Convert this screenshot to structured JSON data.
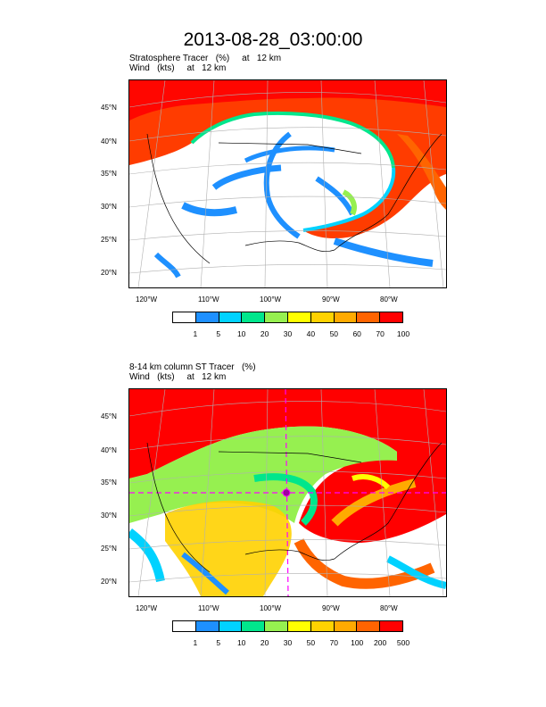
{
  "main_title": "2013-08-28_03:00:00",
  "panel1": {
    "title_line1": "Stratosphere Tracer   (%)     at   12 km",
    "title_line2": "Wind   (kts)     at   12 km",
    "lat_labels": [
      "45°N",
      "40°N",
      "35°N",
      "30°N",
      "25°N",
      "20°N"
    ],
    "lon_labels": [
      "120°W",
      "110°W",
      "100°W",
      "90°W",
      "80°W"
    ],
    "colorbar": {
      "colors": [
        "#ffffff",
        "#1e90ff",
        "#00d2ff",
        "#00e68c",
        "#96f050",
        "#ffff00",
        "#ffd200",
        "#ffaa00",
        "#ff6400",
        "#ff0000"
      ],
      "labels": [
        "1",
        "5",
        "10",
        "20",
        "30",
        "40",
        "50",
        "60",
        "70",
        "100"
      ]
    }
  },
  "panel2": {
    "title_line1": "8-14 km column ST Tracer   (%)",
    "title_line2": "Wind   (kts)     at   12 km",
    "lat_labels": [
      "45°N",
      "40°N",
      "35°N",
      "30°N",
      "25°N",
      "20°N"
    ],
    "lon_labels": [
      "120°W",
      "110°W",
      "100°W",
      "90°W",
      "80°W"
    ],
    "colorbar": {
      "colors": [
        "#ffffff",
        "#1e90ff",
        "#00d2ff",
        "#00e68c",
        "#96f050",
        "#ffff00",
        "#ffd200",
        "#ffaa00",
        "#ff6400",
        "#ff0000"
      ],
      "labels": [
        "1",
        "5",
        "10",
        "20",
        "30",
        "50",
        "70",
        "100",
        "200",
        "500"
      ]
    }
  }
}
